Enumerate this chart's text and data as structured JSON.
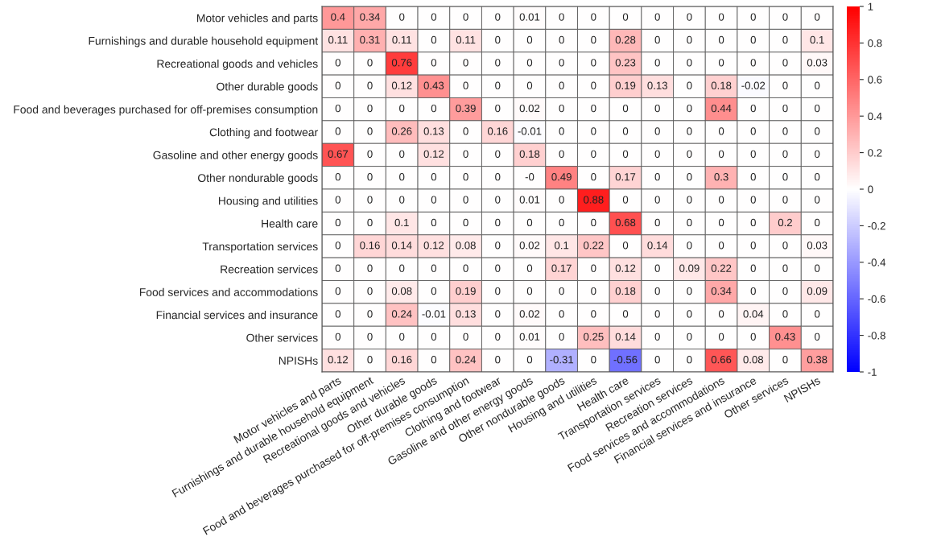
{
  "chart_data": {
    "type": "heatmap",
    "categories": [
      "Motor vehicles and parts",
      "Furnishings and durable household equipment",
      "Recreational goods and vehicles",
      "Other durable goods",
      "Food and beverages purchased for off-premises consumption",
      "Clothing and footwear",
      "Gasoline and other energy goods",
      "Other nondurable goods",
      "Housing and utilities",
      "Health care",
      "Transportation services",
      "Recreation services",
      "Food services and accommodations",
      "Financial services and insurance",
      "Other services",
      "NPISHs"
    ],
    "y_categories": [
      "Motor vehicles and parts",
      "Furnishings and durable household equipment",
      "Recreational goods and vehicles",
      "Other durable goods",
      "Food and beverages purchased for off-premises consumption",
      "Clothing and footwear",
      "Gasoline and other energy goods",
      "Other nondurable goods",
      "Housing and utilities",
      "Health care",
      "Transportation services",
      "Recreation services",
      "Food services and accommodations",
      "Financial services and insurance",
      "Other services",
      "NPISHs"
    ],
    "cells": [
      [
        0.4,
        0.34,
        0,
        0,
        0,
        0,
        0.01,
        0,
        0,
        0,
        0,
        0,
        0,
        0,
        0,
        0
      ],
      [
        0.11,
        0.31,
        0.11,
        0,
        0.11,
        0,
        0,
        0,
        0,
        0.28,
        0,
        0,
        0,
        0,
        0,
        0.1
      ],
      [
        0,
        0,
        0.76,
        0,
        0,
        0,
        0,
        0,
        0,
        0.23,
        0,
        0,
        0,
        0,
        0,
        0.03
      ],
      [
        0,
        0,
        0.12,
        0.43,
        0,
        0,
        0,
        0,
        0,
        0.19,
        0.13,
        0,
        0.18,
        -0.02,
        0,
        0
      ],
      [
        0,
        0,
        0,
        0,
        0.39,
        0,
        0.02,
        0,
        0,
        0,
        0,
        0,
        0.44,
        0,
        0,
        0
      ],
      [
        0,
        0,
        0.26,
        0.13,
        0,
        0.16,
        -0.01,
        0,
        0,
        0,
        0,
        0,
        0,
        0,
        0,
        0
      ],
      [
        0.67,
        0,
        0,
        0.12,
        0,
        0,
        0.18,
        0,
        0,
        0,
        0,
        0,
        0,
        0,
        0,
        0
      ],
      [
        0,
        0,
        0,
        0,
        0,
        0,
        0,
        0.49,
        0,
        0.17,
        0,
        0,
        0.3,
        0,
        0,
        0
      ],
      [
        0,
        0,
        0,
        0,
        0,
        0,
        0.01,
        0,
        0.88,
        0,
        0,
        0,
        0,
        0,
        0,
        0
      ],
      [
        0,
        0,
        0.1,
        0,
        0,
        0,
        0,
        0,
        0,
        0.68,
        0,
        0,
        0,
        0,
        0.2,
        0
      ],
      [
        0,
        0.16,
        0.14,
        0.12,
        0.08,
        0,
        0.02,
        0.1,
        0.22,
        0,
        0.14,
        0,
        0,
        0,
        0,
        0.03
      ],
      [
        0,
        0,
        0,
        0,
        0,
        0,
        0,
        0.17,
        0,
        0.12,
        0,
        0.09,
        0.22,
        0,
        0,
        0
      ],
      [
        0,
        0,
        0.08,
        0,
        0.19,
        0,
        0,
        0,
        0,
        0.18,
        0,
        0,
        0.34,
        0,
        0,
        0.09
      ],
      [
        0,
        0,
        0.24,
        -0.01,
        0.13,
        0,
        0.02,
        0,
        0,
        0,
        0,
        0,
        0,
        0.04,
        0,
        0
      ],
      [
        0,
        0,
        0,
        0,
        0,
        0,
        0.01,
        0,
        0.25,
        0.14,
        0,
        0,
        0,
        0,
        0.43,
        0
      ],
      [
        0.12,
        0,
        0.16,
        0,
        0.24,
        0,
        0,
        -0.31,
        0,
        -0.56,
        0,
        0,
        0.66,
        0.08,
        0,
        0.38
      ]
    ],
    "cell_labels": [
      [
        "0.4",
        "0.34",
        "0",
        "0",
        "0",
        "0",
        "0.01",
        "0",
        "0",
        "0",
        "0",
        "0",
        "0",
        "0",
        "0",
        "0"
      ],
      [
        "0.11",
        "0.31",
        "0.11",
        "0",
        "0.11",
        "0",
        "0",
        "0",
        "0",
        "0.28",
        "0",
        "0",
        "0",
        "0",
        "0",
        "0.1"
      ],
      [
        "0",
        "0",
        "0.76",
        "0",
        "0",
        "0",
        "0",
        "0",
        "0",
        "0.23",
        "0",
        "0",
        "0",
        "0",
        "0",
        "0.03"
      ],
      [
        "0",
        "0",
        "0.12",
        "0.43",
        "0",
        "0",
        "0",
        "0",
        "0",
        "0.19",
        "0.13",
        "0",
        "0.18",
        "-0.02",
        "0",
        "0"
      ],
      [
        "0",
        "0",
        "0",
        "0",
        "0.39",
        "0",
        "0.02",
        "0",
        "0",
        "0",
        "0",
        "0",
        "0.44",
        "0",
        "0",
        "0"
      ],
      [
        "0",
        "0",
        "0.26",
        "0.13",
        "0",
        "0.16",
        "-0.01",
        "0",
        "0",
        "0",
        "0",
        "0",
        "0",
        "0",
        "0",
        "0"
      ],
      [
        "0.67",
        "0",
        "0",
        "0.12",
        "0",
        "0",
        "0.18",
        "0",
        "0",
        "0",
        "0",
        "0",
        "0",
        "0",
        "0",
        "0"
      ],
      [
        "0",
        "0",
        "0",
        "0",
        "0",
        "0",
        "-0",
        "0.49",
        "0",
        "0.17",
        "0",
        "0",
        "0.3",
        "0",
        "0",
        "0"
      ],
      [
        "0",
        "0",
        "0",
        "0",
        "0",
        "0",
        "0.01",
        "0",
        "0.88",
        "0",
        "0",
        "0",
        "0",
        "0",
        "0",
        "0"
      ],
      [
        "0",
        "0",
        "0.1",
        "0",
        "0",
        "0",
        "0",
        "0",
        "0",
        "0.68",
        "0",
        "0",
        "0",
        "0",
        "0.2",
        "0"
      ],
      [
        "0",
        "0.16",
        "0.14",
        "0.12",
        "0.08",
        "0",
        "0.02",
        "0.1",
        "0.22",
        "0",
        "0.14",
        "0",
        "0",
        "0",
        "0",
        "0.03"
      ],
      [
        "0",
        "0",
        "0",
        "0",
        "0",
        "0",
        "0",
        "0.17",
        "0",
        "0.12",
        "0",
        "0.09",
        "0.22",
        "0",
        "0",
        "0"
      ],
      [
        "0",
        "0",
        "0.08",
        "0",
        "0.19",
        "0",
        "0",
        "0",
        "0",
        "0.18",
        "0",
        "0",
        "0.34",
        "0",
        "0",
        "0.09"
      ],
      [
        "0",
        "0",
        "0.24",
        "-0.01",
        "0.13",
        "0",
        "0.02",
        "0",
        "0",
        "0",
        "0",
        "0",
        "0",
        "0.04",
        "0",
        "0"
      ],
      [
        "0",
        "0",
        "0",
        "0",
        "0",
        "0",
        "0.01",
        "0",
        "0.25",
        "0.14",
        "0",
        "0",
        "0",
        "0",
        "0.43",
        "0"
      ],
      [
        "0.12",
        "0",
        "0.16",
        "0",
        "0.24",
        "0",
        "0",
        "-0.31",
        "0",
        "-0.56",
        "0",
        "0",
        "0.66",
        "0.08",
        "0",
        "0.38"
      ]
    ],
    "clim": [
      -1,
      1
    ],
    "cticks": [
      -1,
      -0.8,
      -0.6,
      -0.4,
      -0.2,
      0,
      0.2,
      0.4,
      0.6,
      0.8,
      1
    ]
  }
}
